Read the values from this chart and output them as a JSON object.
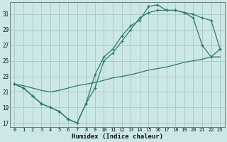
{
  "xlabel": "Humidex (Indice chaleur)",
  "bg_color": "#cce8e6",
  "grid_color": "#aaccc8",
  "line_color": "#2a7a6a",
  "xlim": [
    -0.5,
    23.5
  ],
  "ylim": [
    16.5,
    32.5
  ],
  "xticks": [
    0,
    1,
    2,
    3,
    4,
    5,
    6,
    7,
    8,
    9,
    10,
    11,
    12,
    13,
    14,
    15,
    16,
    17,
    18,
    19,
    20,
    21,
    22,
    23
  ],
  "yticks": [
    17,
    19,
    21,
    23,
    25,
    27,
    29,
    31
  ],
  "line1_x": [
    0,
    1,
    2,
    3,
    4,
    5,
    6,
    7,
    8,
    9,
    10,
    11,
    12,
    13,
    14,
    15,
    16,
    17,
    18,
    19,
    20,
    21,
    22,
    23
  ],
  "line1_y": [
    22.0,
    21.5,
    20.5,
    19.5,
    19.0,
    18.5,
    17.5,
    17.0,
    19.5,
    23.2,
    25.5,
    26.5,
    28.2,
    29.5,
    30.2,
    32.0,
    32.2,
    31.5,
    31.5,
    31.2,
    31.0,
    30.5,
    30.2,
    26.5
  ],
  "line2_x": [
    0,
    1,
    2,
    3,
    4,
    5,
    6,
    7,
    8,
    9,
    10,
    11,
    12,
    13,
    14,
    15,
    16,
    17,
    18,
    19,
    20,
    21,
    22,
    23
  ],
  "line2_y": [
    22.0,
    21.5,
    20.5,
    19.5,
    19.0,
    18.5,
    17.5,
    17.0,
    19.5,
    21.5,
    25.0,
    26.0,
    27.5,
    29.0,
    30.5,
    31.2,
    31.5,
    31.5,
    31.5,
    31.2,
    30.5,
    27.0,
    25.5,
    26.5
  ],
  "line3_x": [
    0,
    1,
    2,
    3,
    4,
    5,
    6,
    7,
    8,
    9,
    10,
    11,
    12,
    13,
    14,
    15,
    16,
    17,
    18,
    19,
    20,
    21,
    22,
    23
  ],
  "line3_y": [
    22.0,
    21.8,
    21.5,
    21.2,
    21.0,
    21.2,
    21.5,
    21.8,
    22.0,
    22.2,
    22.5,
    22.8,
    23.0,
    23.2,
    23.5,
    23.8,
    24.0,
    24.2,
    24.5,
    24.8,
    25.0,
    25.2,
    25.5,
    25.5
  ]
}
